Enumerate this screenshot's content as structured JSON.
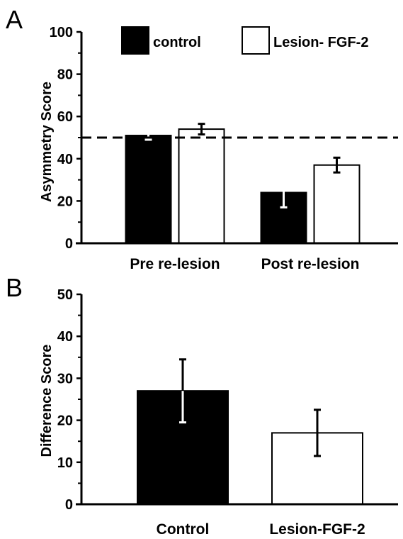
{
  "chart_data": [
    {
      "panel": "A",
      "type": "bar",
      "title": "",
      "xlabel": "",
      "ylabel": "Asymmetry Score",
      "ylim": [
        0,
        100
      ],
      "yticks": [
        0,
        20,
        40,
        60,
        80,
        100
      ],
      "categories": [
        "Pre re-lesion",
        "Post re-lesion"
      ],
      "series": [
        {
          "name": "control",
          "color": "#000000",
          "values": [
            51,
            24
          ],
          "errors": [
            2,
            7
          ]
        },
        {
          "name": "Lesion- FGF-2",
          "color": "#ffffff",
          "values": [
            54,
            37
          ],
          "errors": [
            2.5,
            3.5
          ]
        }
      ],
      "reference_line": {
        "y": 50,
        "style": "dashed"
      },
      "legend": {
        "position": "top"
      },
      "grid": false
    },
    {
      "panel": "B",
      "type": "bar",
      "title": "",
      "xlabel": "",
      "ylabel": "Difference Score",
      "ylim": [
        0,
        50
      ],
      "yticks": [
        0,
        10,
        20,
        30,
        40,
        50
      ],
      "categories": [
        "Control",
        "Lesion-FGF-2"
      ],
      "values": [
        27,
        17
      ],
      "errors": [
        7.5,
        5.5
      ],
      "colors": [
        "#000000",
        "#ffffff"
      ],
      "grid": false
    }
  ]
}
